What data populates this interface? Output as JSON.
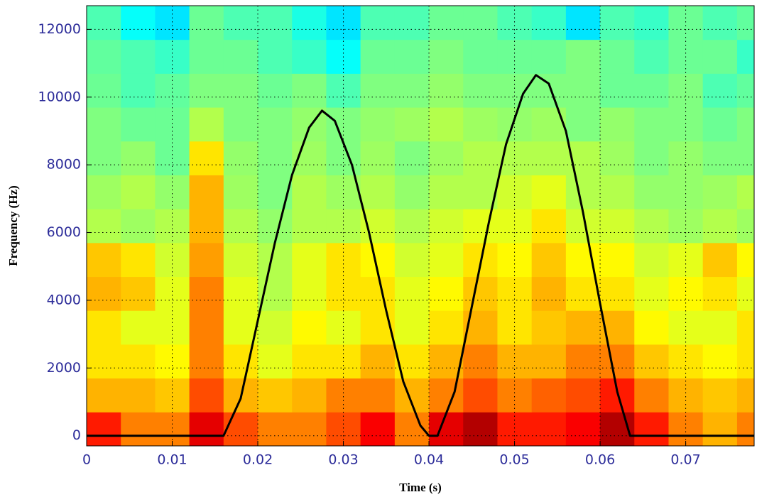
{
  "chart_data": {
    "type": "heatmap",
    "xlabel": "Time (s)",
    "ylabel": "Frequency (Hz)",
    "xlim": [
      0,
      0.078
    ],
    "ylim": [
      -300,
      12700
    ],
    "xticks": [
      0,
      0.01,
      0.02,
      0.03,
      0.04,
      0.05,
      0.06,
      0.07
    ],
    "yticks": [
      0,
      2000,
      4000,
      6000,
      8000,
      10000,
      12000
    ],
    "grid": true,
    "colormap": "jet",
    "clim": [
      0,
      10
    ],
    "x_bins": [
      0,
      0.004,
      0.008,
      0.012,
      0.016,
      0.02,
      0.024,
      0.028,
      0.032,
      0.036,
      0.04,
      0.044,
      0.048,
      0.052,
      0.056,
      0.06,
      0.064,
      0.068,
      0.072,
      0.076,
      0.08
    ],
    "y_bins": [
      -300,
      700,
      1700,
      2700,
      3700,
      4700,
      5700,
      6700,
      7700,
      8700,
      9700,
      10700,
      11700,
      12700
    ],
    "z": [
      [
        8.5,
        7.5,
        7.5,
        9,
        8,
        7.5,
        7.5,
        8,
        8.8,
        7.5,
        9,
        9.5,
        8.5,
        8.5,
        8.8,
        9.5,
        8.5,
        7.5,
        7,
        7.5
      ],
      [
        7,
        7,
        6.8,
        8,
        7,
        6.8,
        7,
        7.5,
        7.5,
        7,
        7.5,
        8,
        7.5,
        7.8,
        8,
        8.5,
        7.5,
        7,
        6.8,
        7
      ],
      [
        6.5,
        6.5,
        6.3,
        7.5,
        6.5,
        6,
        6.5,
        6.5,
        7,
        6.5,
        7,
        7.5,
        7,
        7,
        7.5,
        7.5,
        6.8,
        6.5,
        6.3,
        6.5
      ],
      [
        6.5,
        6,
        6,
        7.5,
        6,
        5.8,
        6.3,
        6,
        6.5,
        6,
        6.5,
        7,
        6.5,
        6.8,
        7,
        7,
        6.3,
        6,
        6,
        6.5
      ],
      [
        7,
        6.8,
        6,
        7.5,
        6,
        5.5,
        6,
        6.5,
        6.5,
        6,
        6.3,
        6.8,
        6.5,
        7,
        6.5,
        6.5,
        6,
        6.3,
        6.5,
        6
      ],
      [
        6.8,
        6.5,
        5.8,
        7.2,
        5.8,
        5.5,
        6,
        6.5,
        6.3,
        5.8,
        6,
        6.5,
        6.3,
        6.8,
        6.3,
        6.3,
        5.8,
        6,
        6.8,
        6.3
      ],
      [
        5.5,
        5.3,
        5.5,
        7,
        5.5,
        5.2,
        5.5,
        5.5,
        5.8,
        5.5,
        5.8,
        6,
        6,
        6.5,
        5.8,
        5.8,
        5.5,
        5.3,
        5.5,
        5.3
      ],
      [
        5.3,
        5.5,
        5.2,
        7,
        5.3,
        5,
        5.5,
        5.3,
        5.5,
        5.2,
        5.5,
        5.5,
        5.8,
        6,
        5.5,
        5.5,
        5.2,
        5.2,
        5.3,
        5.5
      ],
      [
        5,
        5.2,
        4.8,
        6.5,
        5.2,
        5,
        5.3,
        5,
        5.3,
        5,
        5.3,
        5.5,
        5.5,
        5.5,
        5.5,
        5.3,
        5,
        5.2,
        5,
        5
      ],
      [
        5,
        4.8,
        4.8,
        5.5,
        5,
        5,
        5.2,
        5,
        5.2,
        5.3,
        5.5,
        5.3,
        5.2,
        5.3,
        5,
        5.2,
        5,
        5,
        4.8,
        5
      ],
      [
        4.8,
        4.5,
        4.7,
        5,
        5,
        4.8,
        5,
        4.5,
        5,
        5,
        5.2,
        5,
        5,
        5,
        5,
        4.8,
        4.8,
        5,
        4.5,
        4.7
      ],
      [
        4.7,
        4.5,
        4.3,
        4.8,
        4.8,
        4.5,
        4.3,
        3.8,
        4.8,
        4.8,
        5,
        4.8,
        4.8,
        4.8,
        5,
        4.8,
        4.5,
        4.8,
        4.8,
        4.3
      ],
      [
        4.5,
        3.8,
        3.5,
        4.8,
        4.5,
        4.5,
        4,
        3.5,
        4.5,
        4.5,
        4.8,
        4.8,
        4.5,
        4.3,
        3.5,
        4.5,
        4.3,
        4.8,
        4.5,
        4.7
      ]
    ],
    "line": {
      "color": "#000000",
      "x": [
        0,
        0.016,
        0.018,
        0.02,
        0.022,
        0.024,
        0.026,
        0.0275,
        0.029,
        0.031,
        0.033,
        0.035,
        0.037,
        0.039,
        0.04,
        0.041,
        0.043,
        0.045,
        0.047,
        0.049,
        0.051,
        0.0525,
        0.054,
        0.056,
        0.058,
        0.06,
        0.062,
        0.0635,
        0.078
      ],
      "y": [
        0,
        0,
        1100,
        3400,
        5700,
        7700,
        9100,
        9600,
        9300,
        8000,
        6000,
        3700,
        1600,
        300,
        0,
        0,
        1300,
        3800,
        6300,
        8600,
        10100,
        10650,
        10400,
        9000,
        6600,
        3900,
        1300,
        0,
        0
      ]
    }
  }
}
